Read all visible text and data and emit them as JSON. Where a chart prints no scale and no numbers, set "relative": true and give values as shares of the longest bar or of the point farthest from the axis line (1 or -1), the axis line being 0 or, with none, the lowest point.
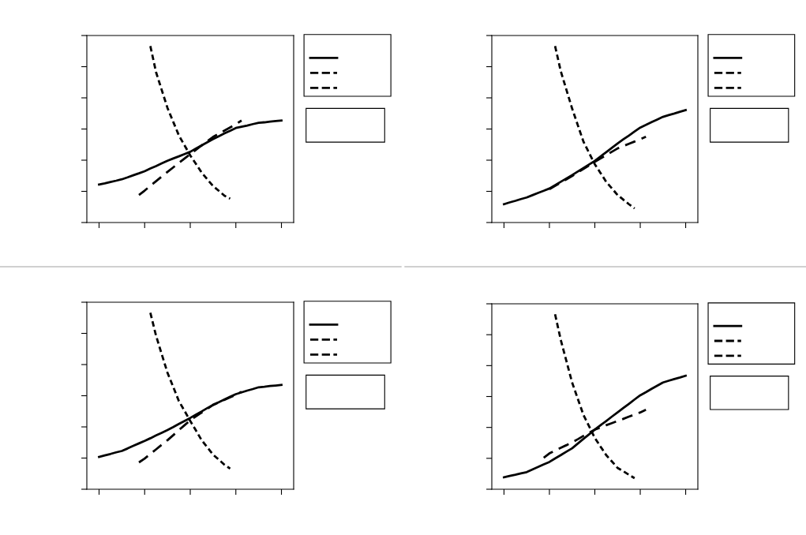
{
  "chart_data": [
    {
      "type": "line",
      "relative": true,
      "tick_labels": false,
      "grid": false,
      "marker": "none",
      "categories": [
        null,
        null,
        null,
        null,
        null,
        null,
        null,
        null,
        null,
        null,
        null,
        null,
        null,
        null,
        null,
        null,
        null,
        null,
        null,
        null,
        null,
        null,
        null,
        null,
        null,
        null,
        null,
        null,
        null,
        null,
        null,
        null,
        null
      ],
      "series": [
        {
          "color": "#000000",
          "line_style": "solid",
          "values": [
            0.215,
            0.222,
            0.23,
            0.237,
            0.245,
            0.256,
            0.268,
            0.279,
            0.291,
            0.306,
            0.32,
            0.335,
            0.35,
            0.363,
            0.375,
            0.388,
            0.401,
            0.419,
            0.437,
            0.455,
            0.473,
            0.489,
            0.505,
            0.52,
            0.536,
            0.543,
            0.55,
            0.558,
            0.565,
            0.568,
            0.572,
            0.575,
            0.578
          ]
        },
        {
          "color": "#000000",
          "line_style": "dashed",
          "values": [
            null,
            null,
            null,
            null,
            null,
            null,
            null,
            0.156,
            0.181,
            0.208,
            0.234,
            0.261,
            0.287,
            0.312,
            0.338,
            0.363,
            0.388,
            0.412,
            0.437,
            0.461,
            0.485,
            0.503,
            0.521,
            0.539,
            0.557,
            0.578,
            null,
            null,
            null,
            null,
            null,
            null,
            null
          ]
        },
        {
          "color": "#000000",
          "line_style": "dotted",
          "values": [
            null,
            null,
            null,
            null,
            null,
            null,
            null,
            null,
            null,
            1.0,
            0.852,
            0.751,
            0.65,
            0.572,
            0.494,
            0.437,
            0.38,
            0.332,
            0.283,
            0.245,
            0.207,
            0.18,
            0.152,
            0.135,
            null,
            null,
            null,
            null,
            null,
            null,
            null,
            null,
            null
          ]
        }
      ]
    },
    {
      "type": "line",
      "relative": true,
      "tick_labels": false,
      "grid": false,
      "marker": "none",
      "categories": [
        null,
        null,
        null,
        null,
        null,
        null,
        null,
        null,
        null,
        null,
        null,
        null,
        null,
        null,
        null,
        null,
        null,
        null,
        null,
        null,
        null,
        null,
        null,
        null,
        null,
        null,
        null,
        null,
        null,
        null,
        null,
        null,
        null
      ],
      "series": [
        {
          "color": "#000000",
          "line_style": "solid",
          "values": [
            0.104,
            0.114,
            0.123,
            0.133,
            0.142,
            0.155,
            0.168,
            0.18,
            0.193,
            0.212,
            0.231,
            0.25,
            0.269,
            0.289,
            0.309,
            0.329,
            0.349,
            0.374,
            0.399,
            0.423,
            0.448,
            0.471,
            0.493,
            0.516,
            0.538,
            0.553,
            0.569,
            0.584,
            0.599,
            0.609,
            0.618,
            0.628,
            0.637
          ]
        },
        {
          "color": "#000000",
          "line_style": "dashed",
          "values": [
            null,
            null,
            null,
            null,
            null,
            null,
            null,
            null,
            0.189,
            0.208,
            0.226,
            0.245,
            0.264,
            0.284,
            0.304,
            0.324,
            0.344,
            0.363,
            0.382,
            0.401,
            0.42,
            0.433,
            0.446,
            0.459,
            0.472,
            0.486,
            null,
            null,
            null,
            null,
            null,
            null,
            null
          ]
        },
        {
          "color": "#000000",
          "line_style": "dotted",
          "values": [
            null,
            null,
            null,
            null,
            null,
            null,
            null,
            null,
            null,
            1.0,
            0.858,
            0.752,
            0.646,
            0.552,
            0.458,
            0.394,
            0.33,
            0.281,
            0.231,
            0.194,
            0.156,
            0.13,
            0.104,
            0.08,
            null,
            null,
            null,
            null,
            null,
            null,
            null,
            null,
            null
          ]
        }
      ]
    },
    {
      "type": "line",
      "relative": true,
      "tick_labels": false,
      "grid": false,
      "marker": "none",
      "categories": [
        null,
        null,
        null,
        null,
        null,
        null,
        null,
        null,
        null,
        null,
        null,
        null,
        null,
        null,
        null,
        null,
        null,
        null,
        null,
        null,
        null,
        null,
        null,
        null,
        null,
        null,
        null,
        null,
        null,
        null,
        null,
        null,
        null
      ],
      "series": [
        {
          "color": "#000000",
          "line_style": "solid",
          "values": [
            0.183,
            0.192,
            0.2,
            0.209,
            0.217,
            0.231,
            0.246,
            0.26,
            0.274,
            0.289,
            0.305,
            0.32,
            0.335,
            0.352,
            0.37,
            0.387,
            0.404,
            0.423,
            0.441,
            0.46,
            0.478,
            0.493,
            0.509,
            0.524,
            0.539,
            0.549,
            0.559,
            0.568,
            0.578,
            0.581,
            0.585,
            0.588,
            0.591
          ]
        },
        {
          "color": "#000000",
          "line_style": "dashed",
          "values": [
            null,
            null,
            null,
            null,
            null,
            null,
            null,
            0.152,
            0.174,
            0.2,
            0.226,
            0.252,
            0.278,
            0.306,
            0.335,
            0.363,
            0.391,
            0.413,
            0.435,
            0.456,
            0.478,
            0.492,
            0.507,
            0.521,
            0.535,
            0.552,
            null,
            null,
            null,
            null,
            null,
            null,
            null
          ]
        },
        {
          "color": "#000000",
          "line_style": "dotted",
          "values": [
            null,
            null,
            null,
            null,
            null,
            null,
            null,
            null,
            null,
            1.0,
            0.87,
            0.765,
            0.661,
            0.581,
            0.5,
            0.444,
            0.387,
            0.333,
            0.278,
            0.237,
            0.196,
            0.168,
            0.139,
            0.117,
            null,
            null,
            null,
            null,
            null,
            null,
            null,
            null,
            null
          ]
        }
      ]
    },
    {
      "type": "line",
      "relative": true,
      "tick_labels": false,
      "grid": false,
      "marker": "none",
      "categories": [
        null,
        null,
        null,
        null,
        null,
        null,
        null,
        null,
        null,
        null,
        null,
        null,
        null,
        null,
        null,
        null,
        null,
        null,
        null,
        null,
        null,
        null,
        null,
        null,
        null,
        null,
        null,
        null,
        null,
        null,
        null,
        null,
        null
      ],
      "series": [
        {
          "color": "#000000",
          "line_style": "solid",
          "values": [
            0.068,
            0.076,
            0.083,
            0.091,
            0.098,
            0.113,
            0.127,
            0.142,
            0.156,
            0.176,
            0.195,
            0.215,
            0.234,
            0.261,
            0.288,
            0.314,
            0.341,
            0.366,
            0.39,
            0.415,
            0.439,
            0.464,
            0.488,
            0.513,
            0.537,
            0.555,
            0.574,
            0.592,
            0.61,
            0.62,
            0.63,
            0.639,
            0.649
          ]
        },
        {
          "color": "#000000",
          "line_style": "dashed",
          "values": [
            null,
            null,
            null,
            null,
            null,
            null,
            null,
            0.18,
            0.205,
            0.221,
            0.237,
            0.252,
            0.268,
            0.286,
            0.305,
            0.323,
            0.341,
            0.353,
            0.366,
            0.378,
            0.39,
            0.402,
            0.415,
            0.427,
            0.439,
            0.454,
            null,
            null,
            null,
            null,
            null,
            null,
            null
          ]
        },
        {
          "color": "#000000",
          "line_style": "dotted",
          "values": [
            null,
            null,
            null,
            null,
            null,
            null,
            null,
            null,
            null,
            1.0,
            0.854,
            0.732,
            0.61,
            0.517,
            0.424,
            0.359,
            0.293,
            0.244,
            0.195,
            0.159,
            0.122,
            0.103,
            0.083,
            0.063,
            null,
            null,
            null,
            null,
            null,
            null,
            null,
            null,
            null
          ]
        }
      ]
    }
  ]
}
